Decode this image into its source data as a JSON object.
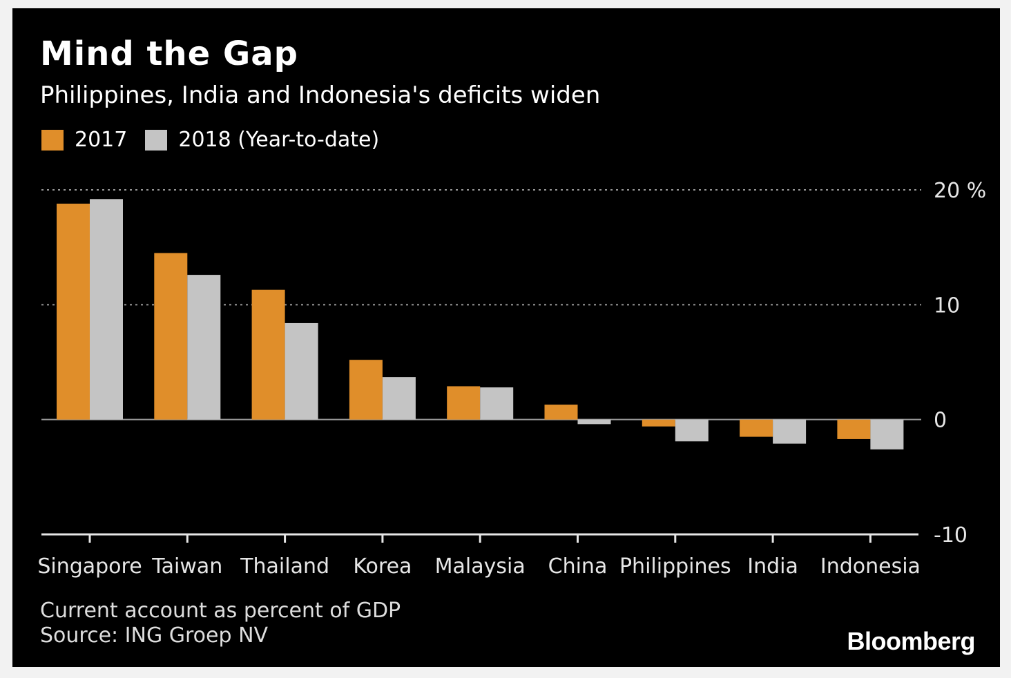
{
  "header": {
    "title": "Mind the Gap",
    "subtitle": "Philippines, India and Indonesia's deficits widen"
  },
  "legend": {
    "items": [
      {
        "label": "2017",
        "color": "#e08e2a"
      },
      {
        "label": "2018 (Year-to-date)",
        "color": "#c4c4c4"
      }
    ]
  },
  "footer": {
    "note": "Current account as percent of GDP",
    "source": "Source: ING Groep NV",
    "brand": "Bloomberg"
  },
  "chart_data": {
    "type": "bar",
    "categories": [
      "Singapore",
      "Taiwan",
      "Thailand",
      "Korea",
      "Malaysia",
      "China",
      "Philippines",
      "India",
      "Indonesia"
    ],
    "series": [
      {
        "name": "2017",
        "color": "#e08e2a",
        "values": [
          18.8,
          14.5,
          11.3,
          5.2,
          2.9,
          1.3,
          -0.6,
          -1.5,
          -1.7
        ]
      },
      {
        "name": "2018 (Year-to-date)",
        "color": "#c4c4c4",
        "values": [
          19.2,
          12.6,
          8.4,
          3.7,
          2.8,
          -0.4,
          -1.9,
          -2.1,
          -2.6
        ]
      }
    ],
    "ylim": [
      -10,
      20
    ],
    "yticks": [
      {
        "value": 20,
        "label": "20 %"
      },
      {
        "value": 10,
        "label": "10"
      },
      {
        "value": 0,
        "label": "0"
      },
      {
        "value": -10,
        "label": "-10"
      }
    ],
    "ylabel": "",
    "xlabel": "",
    "grid": true,
    "legend_position": "top-left"
  }
}
